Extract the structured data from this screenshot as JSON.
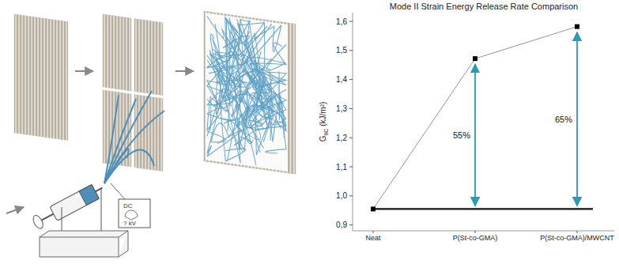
{
  "diagram": {
    "power_supply": {
      "label": "DC",
      "voltage": "? kV"
    }
  },
  "chart_data": {
    "type": "line",
    "title": "Mode II Strain Energy Release Rate Comparison",
    "ylabel": {
      "text": "G",
      "subscript": "IIC",
      "unit": " (kJ/m²)"
    },
    "categories": [
      "Neat",
      "P(St-co-GMA)",
      "P(St-co-GMA)/MWCNT"
    ],
    "values": [
      0.955,
      1.472,
      1.582
    ],
    "color": "#000000",
    "marker": "square",
    "ylim": [
      0.88,
      1.63
    ],
    "yticks": [
      {
        "value": 0.9,
        "label": "0,9"
      },
      {
        "value": 1.0,
        "label": "1,0"
      },
      {
        "value": 1.1,
        "label": "1,1"
      },
      {
        "value": 1.2,
        "label": "1,2"
      },
      {
        "value": 1.3,
        "label": "1,3"
      },
      {
        "value": 1.4,
        "label": "1,4"
      },
      {
        "value": 1.5,
        "label": "1,5"
      },
      {
        "value": 1.6,
        "label": "1,6"
      }
    ],
    "grid": false,
    "annotations": [
      {
        "category": "P(St-co-GMA)",
        "text": "55%"
      },
      {
        "category": "P(St-co-GMA)/MWCNT",
        "text": "65%"
      }
    ]
  }
}
